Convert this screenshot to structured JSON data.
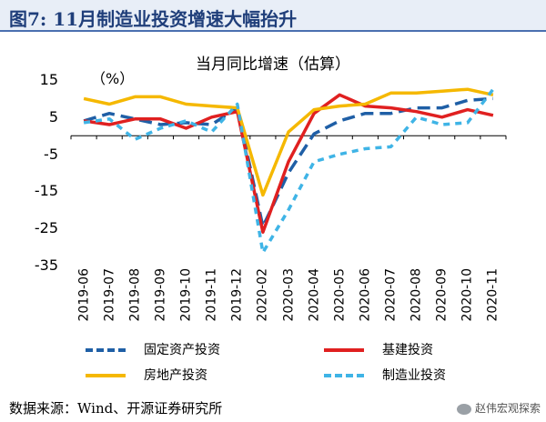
{
  "figure": {
    "title": "图7: 11月制造业投资增速大幅抬升",
    "source": "数据来源：Wind、开源证券研究所",
    "watermark": "赵伟宏观探索"
  },
  "chart_data": {
    "type": "line",
    "title": "当月同比增速（估算）",
    "unit_label": "（%）",
    "categories": [
      "2019-06",
      "2019-07",
      "2019-08",
      "2019-09",
      "2019-10",
      "2019-11",
      "2019-12",
      "2020-02",
      "2020-03",
      "2020-04",
      "2020-05",
      "2020-06",
      "2020-07",
      "2020-08",
      "2020-09",
      "2020-10",
      "2020-11"
    ],
    "ylim": [
      -35,
      15
    ],
    "yticks": [
      15,
      5,
      -5,
      -15,
      -25,
      -35
    ],
    "ytick_labels": [
      "15",
      "5",
      "-5",
      "-15",
      "-25",
      "-35"
    ],
    "series": [
      {
        "name": "固定资产投资",
        "color": "#1f5fa6",
        "dash": "14,7",
        "values": [
          4,
          6,
          4.5,
          3,
          3.5,
          3,
          7.5,
          -24.5,
          -10,
          0.5,
          4,
          6,
          6,
          7.5,
          7.5,
          9.5,
          10
        ]
      },
      {
        "name": "基建投资",
        "color": "#e02020",
        "dash": "",
        "values": [
          4,
          3,
          4.5,
          4.5,
          2,
          5,
          6.5,
          -26,
          -7,
          6,
          11,
          8,
          7.5,
          6.5,
          5,
          7,
          5.5
        ]
      },
      {
        "name": "房地产投资",
        "color": "#f5b800",
        "dash": "",
        "values": [
          10,
          8.5,
          10.5,
          10.5,
          8.5,
          8,
          7.5,
          -16,
          1,
          7,
          8,
          8.5,
          11.5,
          11.5,
          12,
          12.5,
          11
        ]
      },
      {
        "name": "制造业投资",
        "color": "#3fb4e6",
        "dash": "7,6",
        "values": [
          3.5,
          4.5,
          -1,
          2,
          4,
          1,
          8.5,
          -31.5,
          -20,
          -7,
          -5,
          -3.5,
          -3,
          5,
          3,
          3.5,
          12.5
        ]
      }
    ],
    "grid": false,
    "legend_position": "bottom"
  }
}
